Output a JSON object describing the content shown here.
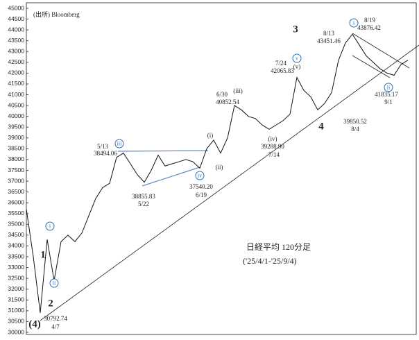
{
  "chart_data": {
    "type": "line",
    "source": "(出所) Bloomberg",
    "title": "日経平均 120分足",
    "subtitle": "('25/4/1-'25/9/4)",
    "values": [
      35700,
      33500,
      30900,
      34300,
      32400,
      34200,
      34500,
      34200,
      34600,
      35400,
      36200,
      36700,
      36900,
      38100,
      38300,
      37800,
      37300,
      36950,
      37500,
      38200,
      37700,
      37800,
      37900,
      38000,
      37900,
      37600,
      38500,
      38900,
      38300,
      39000,
      40500,
      40300,
      40000,
      39900,
      39600,
      39400,
      39600,
      39800,
      40100,
      41800,
      41200,
      40900,
      40300,
      40600,
      41100,
      42600,
      43400,
      43800,
      43300,
      42800,
      42500,
      42200,
      42000,
      41900,
      42400,
      42600
    ],
    "color": "#111111",
    "ylim": [
      30000,
      45000
    ],
    "yticks": [
      30000,
      30500,
      31000,
      31500,
      32000,
      32500,
      33000,
      33500,
      34000,
      34500,
      35000,
      35500,
      36000,
      36500,
      37000,
      37500,
      38000,
      38500,
      39000,
      39500,
      40000,
      40500,
      41000,
      41500,
      42000,
      42500,
      43000,
      43500,
      44000,
      44500,
      45000
    ],
    "annotations": [
      "5/13",
      "38494.06",
      "38855.83",
      "5/22",
      "37540.20",
      "6/19",
      "6/30",
      "40852.54",
      "7/24",
      "42065.83",
      "8/13",
      "43451.46",
      "8/19",
      "43876.42",
      "41835.17",
      "9/1",
      "39850.52",
      "8/4",
      "39288.90",
      "7/14",
      "30792.74",
      "4/7",
      "(i)",
      "(ii)",
      "(iii)",
      "(iv)",
      "(v)"
    ],
    "wave_labels": [
      "(4)",
      "1",
      "2",
      "3",
      "4"
    ],
    "circled_labels": [
      "i",
      "ii",
      "iii",
      "iv",
      "v",
      "i",
      "ii"
    ]
  }
}
